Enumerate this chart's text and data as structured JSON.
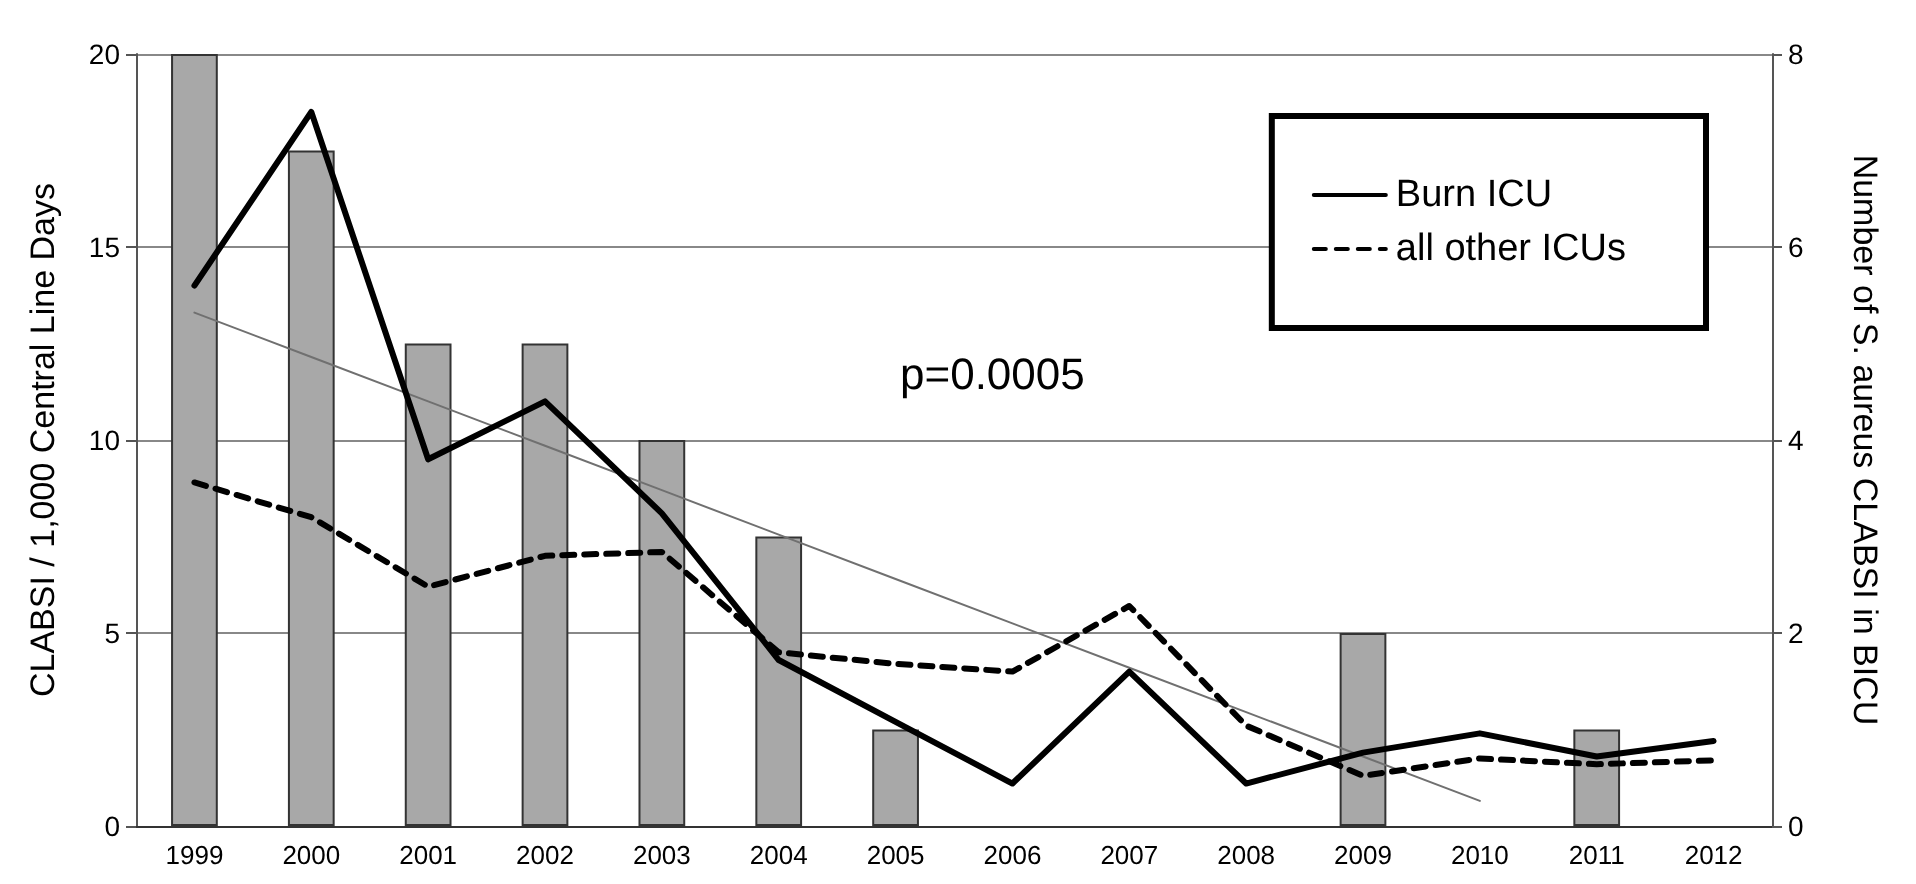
{
  "chart_data": {
    "type": "line",
    "categories": [
      "1999",
      "2000",
      "2001",
      "2002",
      "2003",
      "2004",
      "2005",
      "2006",
      "2007",
      "2008",
      "2009",
      "2010",
      "2011",
      "2012"
    ],
    "ylabel": "CLABSI / 1,000 Central Line Days",
    "y2label": "Number of S. aureus CLABSI in BICU",
    "ylim": [
      0,
      20
    ],
    "yticks": [
      0,
      5,
      10,
      15,
      20
    ],
    "y2lim": [
      0,
      8
    ],
    "y2ticks": [
      0,
      2,
      4,
      6,
      8
    ],
    "grid": "y",
    "legend": "top right",
    "marker": "none",
    "annotations": [
      "p=0.0005"
    ],
    "series": [
      {
        "type": "bar",
        "axis": "y2",
        "color": "#a8a8a8",
        "values": [
          8,
          7,
          5,
          5,
          4,
          3,
          1,
          0,
          0,
          0,
          2,
          0,
          1,
          0
        ]
      },
      {
        "name": "Burn ICU",
        "color": "#000000",
        "line_style": "solid",
        "values": [
          14,
          18.5,
          9.5,
          11,
          8.1,
          4.3,
          2.7,
          1.1,
          4.0,
          1.1,
          1.9,
          2.4,
          1.8,
          2.2
        ]
      },
      {
        "name": "all other ICUs",
        "color": "#000000",
        "line_style": "dashed",
        "values": [
          8.9,
          8.0,
          6.2,
          7.0,
          7.1,
          4.5,
          4.2,
          4.0,
          5.7,
          2.6,
          1.3,
          1.75,
          1.6,
          1.7
        ]
      },
      {
        "color": "#707070",
        "line_style": "solid",
        "values": [
          13.3,
          12.15,
          11.0,
          9.85,
          8.7,
          7.55,
          6.4,
          5.25,
          4.1,
          2.95,
          1.8,
          0.65,
          null,
          null
        ]
      }
    ]
  }
}
